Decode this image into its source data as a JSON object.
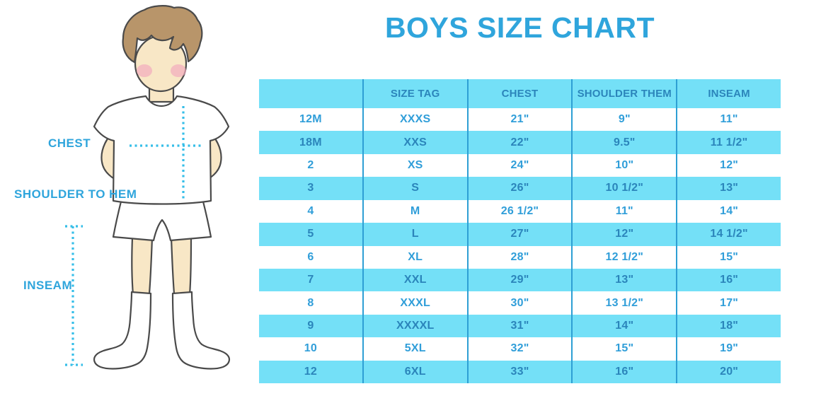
{
  "title": "BOYS SIZE CHART",
  "figure": {
    "labels": {
      "chest": "CHEST",
      "shoulder_to_hem": "SHOULDER TO HEM",
      "inseam": "INSEAM"
    }
  },
  "table": {
    "columns": [
      "",
      "SIZE TAG",
      "CHEST",
      "SHOULDER THEM",
      "INSEAM"
    ],
    "rows": [
      [
        "12M",
        "XXXS",
        "21\"",
        "9\"",
        "11\""
      ],
      [
        "18M",
        "XXS",
        "22\"",
        "9.5\"",
        "11 1/2\""
      ],
      [
        "2",
        "XS",
        "24\"",
        "10\"",
        "12\""
      ],
      [
        "3",
        "S",
        "26\"",
        "10 1/2\"",
        "13\""
      ],
      [
        "4",
        "M",
        "26 1/2\"",
        "11\"",
        "14\""
      ],
      [
        "5",
        "L",
        "27\"",
        "12\"",
        "14 1/2\""
      ],
      [
        "6",
        "XL",
        "28\"",
        "12 1/2\"",
        "15\""
      ],
      [
        "7",
        "XXL",
        "29\"",
        "13\"",
        "16\""
      ],
      [
        "8",
        "XXXL",
        "30\"",
        "13 1/2\"",
        "17\""
      ],
      [
        "9",
        "XXXXL",
        "31\"",
        "14\"",
        "18\""
      ],
      [
        "10",
        "5XL",
        "32\"",
        "15\"",
        "19\""
      ],
      [
        "12",
        "6XL",
        "33\"",
        "16\"",
        "20\""
      ]
    ]
  },
  "colors": {
    "accent_blue": "#2FA5DC",
    "table_fill": "#74E0F7",
    "table_line": "#2E9FD4",
    "cell_text": "#309ED9",
    "cell_text_dark": "#2B85BB",
    "dotted_line": "#35BEE8",
    "skin": "#F8E7C6",
    "hair": "#B8956A",
    "outline": "#4A4A4A",
    "blush": "#F2ABBE"
  }
}
